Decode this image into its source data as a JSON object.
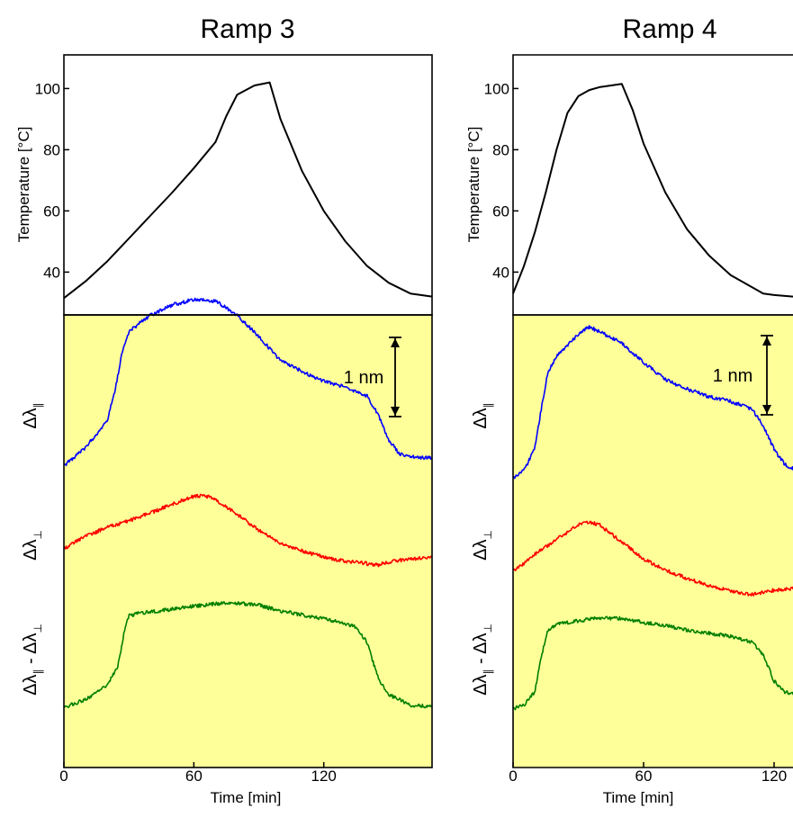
{
  "chart_data": [
    {
      "type": "line",
      "title": "Ramp 3",
      "xlabel": "Time [min]",
      "xticks": [
        0,
        60,
        120
      ],
      "xlim": [
        0,
        170
      ],
      "temperature": {
        "ylabel": "Temperature  [°C]",
        "yticks": [
          40,
          60,
          80,
          100
        ],
        "ylim": [
          26,
          111
        ],
        "x": [
          0,
          10,
          20,
          30,
          40,
          50,
          60,
          70,
          75,
          80,
          88,
          95,
          100,
          110,
          120,
          130,
          140,
          150,
          160,
          170
        ],
        "y": [
          31.5,
          37,
          43.5,
          51,
          58.5,
          66,
          74,
          82.5,
          91,
          98,
          101,
          102,
          90,
          73,
          60,
          50,
          42,
          36.5,
          33,
          32
        ]
      },
      "shift_panel": {
        "scale_bar_label": "1 nm",
        "series": [
          {
            "name": "Δλ∥",
            "color": "#0000ff",
            "x": [
              0,
              10,
              20,
              24,
              27,
              30,
              35,
              40,
              50,
              60,
              70,
              80,
              90,
              100,
              110,
              120,
              130,
              140,
              145,
              150,
              155,
              160,
              170
            ],
            "y": [
              0.05,
              0.28,
              0.62,
              1.05,
              1.5,
              1.74,
              1.85,
              1.95,
              2.08,
              2.15,
              2.13,
              1.95,
              1.68,
              1.38,
              1.24,
              1.12,
              1.04,
              0.93,
              0.7,
              0.38,
              0.2,
              0.16,
              0.15
            ]
          },
          {
            "name": "Δλ⊥",
            "color": "#ff0000",
            "x": [
              0,
              10,
              20,
              30,
              40,
              50,
              60,
              65,
              70,
              80,
              90,
              100,
              110,
              120,
              130,
              140,
              145,
              150,
              160,
              170
            ],
            "y": [
              0.05,
              0.2,
              0.32,
              0.4,
              0.5,
              0.61,
              0.71,
              0.72,
              0.67,
              0.48,
              0.28,
              0.12,
              0.02,
              -0.06,
              -0.11,
              -0.14,
              -0.16,
              -0.12,
              -0.08,
              -0.06
            ]
          },
          {
            "name": "Δλ∥ - Δλ⊥",
            "color": "#007f00",
            "x": [
              0,
              10,
              20,
              25,
              28,
              30,
              35,
              50,
              60,
              70,
              80,
              90,
              100,
              110,
              120,
              130,
              135,
              140,
              145,
              150,
              160,
              170
            ],
            "y": [
              0.02,
              0.12,
              0.3,
              0.55,
              1.0,
              1.18,
              1.21,
              1.26,
              1.3,
              1.33,
              1.34,
              1.31,
              1.24,
              1.19,
              1.14,
              1.08,
              1.03,
              0.84,
              0.4,
              0.18,
              0.05,
              0.03
            ]
          }
        ]
      }
    },
    {
      "type": "line",
      "title": "Ramp 4",
      "xlabel": "Time [min]",
      "xticks": [
        0,
        60,
        120
      ],
      "xlim": [
        0,
        130
      ],
      "temperature": {
        "ylabel": "Temperature  [°C]",
        "yticks": [
          40,
          60,
          80,
          100
        ],
        "ylim": [
          26,
          111
        ],
        "x": [
          0,
          5,
          10,
          15,
          20,
          25,
          30,
          35,
          40,
          45,
          50,
          55,
          60,
          70,
          80,
          90,
          100,
          110,
          115,
          120,
          130
        ],
        "y": [
          33,
          42,
          53,
          66,
          80,
          92,
          97.5,
          99.5,
          100.5,
          101,
          101.5,
          93,
          82,
          66,
          54,
          45.5,
          39,
          35,
          33,
          32.5,
          32
        ]
      },
      "shift_panel": {
        "scale_bar_label": "1 nm",
        "series": [
          {
            "name": "Δλ∥",
            "color": "#0000ff",
            "x": [
              0,
              5,
              10,
              13,
              16,
              20,
              25,
              30,
              35,
              40,
              50,
              60,
              70,
              80,
              90,
              100,
              110,
              115,
              120,
              125,
              130
            ],
            "y": [
              0.0,
              0.1,
              0.4,
              0.9,
              1.38,
              1.58,
              1.72,
              1.87,
              1.96,
              1.9,
              1.75,
              1.5,
              1.28,
              1.16,
              1.06,
              1.0,
              0.9,
              0.68,
              0.38,
              0.18,
              0.12
            ]
          },
          {
            "name": "Δλ⊥",
            "color": "#ff0000",
            "x": [
              0,
              5,
              10,
              20,
              30,
              35,
              40,
              50,
              60,
              70,
              80,
              90,
              100,
              110,
              120,
              130
            ],
            "y": [
              -0.2,
              -0.1,
              0.02,
              0.22,
              0.4,
              0.44,
              0.4,
              0.18,
              -0.04,
              -0.18,
              -0.29,
              -0.38,
              -0.45,
              -0.5,
              -0.44,
              -0.42
            ]
          },
          {
            "name": "Δλ∥ - Δλ⊥",
            "color": "#007f00",
            "x": [
              0,
              5,
              10,
              13,
              16,
              20,
              30,
              40,
              50,
              60,
              70,
              80,
              90,
              100,
              110,
              115,
              120,
              125,
              130
            ],
            "y": [
              0.0,
              0.05,
              0.22,
              0.68,
              1.02,
              1.1,
              1.14,
              1.18,
              1.17,
              1.12,
              1.08,
              1.02,
              0.98,
              0.94,
              0.86,
              0.7,
              0.36,
              0.22,
              0.2
            ]
          }
        ]
      }
    }
  ]
}
